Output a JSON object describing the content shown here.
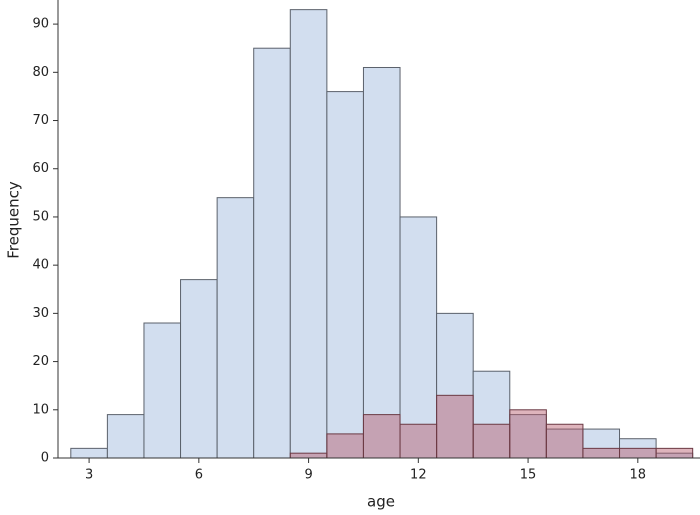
{
  "chart_data": {
    "type": "histogram",
    "x_label": "age",
    "y_label": "Frequency",
    "bins": [
      2.5,
      3.5,
      4.5,
      5.5,
      6.5,
      7.5,
      8.5,
      9.5,
      10.5,
      11.5,
      12.5,
      13.5,
      14.5,
      15.5,
      16.5,
      17.5,
      18.5,
      19.5
    ],
    "series": [
      {
        "color": "#d2deef",
        "values": [
          2,
          9,
          28,
          37,
          54,
          85,
          93,
          76,
          81,
          50,
          30,
          18,
          9,
          6,
          6,
          4,
          1
        ]
      },
      {
        "color": "#b5596b",
        "values": [
          0,
          0,
          0,
          0,
          0,
          0,
          1,
          5,
          9,
          7,
          13,
          7,
          10,
          7,
          2,
          2,
          2
        ]
      }
    ],
    "xlim": [
      2.15,
      19.7
    ],
    "xticks": [
      3,
      6,
      9,
      12,
      15,
      18
    ],
    "ylim": [
      0,
      95
    ],
    "yticks": [
      0,
      10,
      20,
      30,
      40,
      50,
      60,
      70,
      80,
      90
    ]
  }
}
